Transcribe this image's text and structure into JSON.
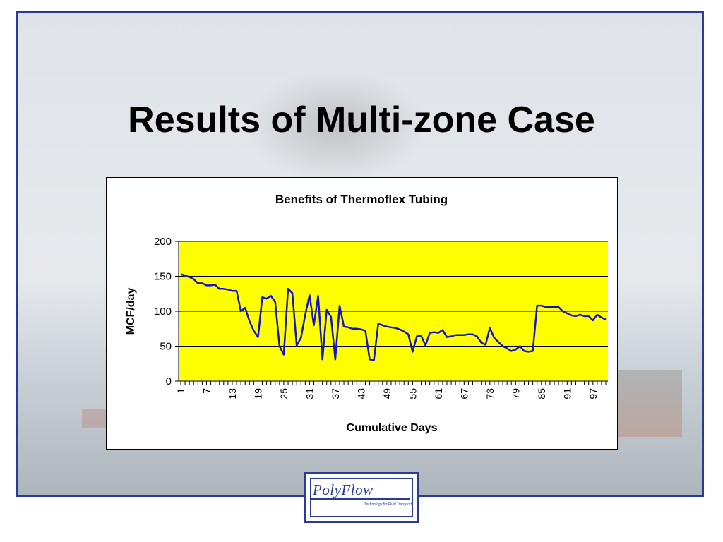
{
  "slide": {
    "title": "Results of Multi-zone Case",
    "logo": {
      "name": "PolyFlow",
      "tagline": "Technology for Fluid Transport"
    }
  },
  "colors": {
    "frame": "#2a3a9a",
    "plot_background": "#ffff00",
    "series": "#1414c8"
  },
  "chart_data": {
    "type": "line",
    "title": "Benefits of Thermoflex Tubing",
    "xlabel": "Cumulative Days",
    "ylabel": "MCF/day",
    "ylim": [
      0,
      200
    ],
    "yticks": [
      0,
      50,
      100,
      150,
      200
    ],
    "xticks": [
      1,
      7,
      13,
      19,
      25,
      31,
      37,
      43,
      49,
      55,
      61,
      67,
      73,
      79,
      85,
      91,
      97
    ],
    "grid": "horizontal",
    "legend": "none",
    "series": [
      {
        "values": [
          153,
          151,
          149,
          146,
          140,
          140,
          137,
          137,
          138,
          132,
          132,
          131,
          129,
          129,
          100,
          105,
          86,
          72,
          63,
          120,
          118,
          122,
          113,
          50,
          38,
          132,
          126,
          51,
          62,
          95,
          123,
          80,
          122,
          31,
          102,
          92,
          31,
          108,
          78,
          77,
          75,
          75,
          74,
          72,
          31,
          30,
          82,
          80,
          78,
          77,
          76,
          74,
          71,
          67,
          42,
          64,
          65,
          51,
          69,
          70,
          69,
          73,
          63,
          64,
          66,
          66,
          66,
          67,
          67,
          64,
          55,
          52,
          76,
          62,
          56,
          50,
          47,
          43,
          45,
          50,
          43,
          42,
          43,
          108,
          108,
          106,
          106,
          106,
          106,
          100,
          97,
          94,
          93,
          95,
          93,
          93,
          87,
          95,
          91,
          88
        ]
      }
    ]
  }
}
